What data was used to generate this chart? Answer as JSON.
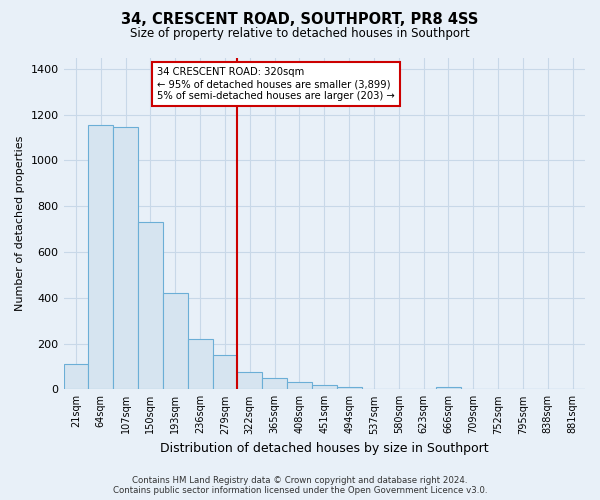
{
  "title": "34, CRESCENT ROAD, SOUTHPORT, PR8 4SS",
  "subtitle": "Size of property relative to detached houses in Southport",
  "xlabel": "Distribution of detached houses by size in Southport",
  "ylabel": "Number of detached properties",
  "bar_labels": [
    "21sqm",
    "64sqm",
    "107sqm",
    "150sqm",
    "193sqm",
    "236sqm",
    "279sqm",
    "322sqm",
    "365sqm",
    "408sqm",
    "451sqm",
    "494sqm",
    "537sqm",
    "580sqm",
    "623sqm",
    "666sqm",
    "709sqm",
    "752sqm",
    "795sqm",
    "838sqm",
    "881sqm"
  ],
  "bar_values": [
    110,
    1155,
    1145,
    730,
    420,
    220,
    150,
    75,
    50,
    30,
    18,
    12,
    0,
    0,
    0,
    8,
    0,
    0,
    0,
    0,
    0
  ],
  "bar_color": "#d6e4f0",
  "bar_edge_color": "#6baed6",
  "grid_color": "#c8d8e8",
  "ylim": [
    0,
    1450
  ],
  "yticks": [
    0,
    200,
    400,
    600,
    800,
    1000,
    1200,
    1400
  ],
  "vline_index": 7,
  "property_line_label": "34 CRESCENT ROAD: 320sqm",
  "annotation_smaller": "← 95% of detached houses are smaller (3,899)",
  "annotation_larger": "5% of semi-detached houses are larger (203) →",
  "annotation_box_color": "#ffffff",
  "annotation_box_edge": "#cc0000",
  "vline_color": "#cc0000",
  "footer_line1": "Contains HM Land Registry data © Crown copyright and database right 2024.",
  "footer_line2": "Contains public sector information licensed under the Open Government Licence v3.0.",
  "background_color": "#e8f0f8"
}
